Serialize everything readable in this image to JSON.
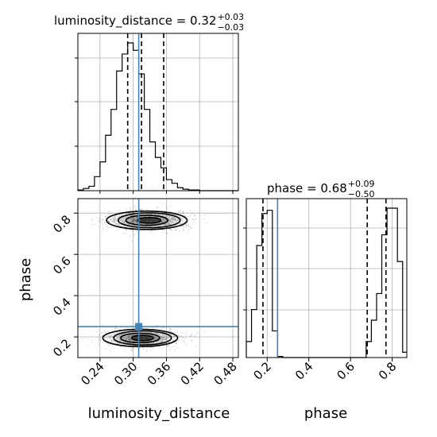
{
  "chart_data": [
    {
      "panel": "luminosity_distance marginal",
      "type": "histogram",
      "title": {
        "main": "luminosity_distance = 0.32",
        "plus": "+0.03",
        "minus": "−0.03"
      },
      "xlim": [
        0.2,
        0.49
      ],
      "bins": {
        "edges": [
          0.2,
          0.21,
          0.22,
          0.23,
          0.24,
          0.25,
          0.26,
          0.27,
          0.28,
          0.29,
          0.3,
          0.31,
          0.32,
          0.33,
          0.34,
          0.35,
          0.36,
          0.37,
          0.38,
          0.39,
          0.4,
          0.41,
          0.42,
          0.43,
          0.44,
          0.45,
          0.46,
          0.47,
          0.48,
          0.49
        ],
        "counts": [
          1,
          3,
          6,
          19,
          39,
          75,
          110,
          162,
          185,
          200,
          190,
          158,
          110,
          66,
          45,
          31,
          15,
          10,
          4,
          2,
          1,
          1,
          0,
          0,
          0,
          0,
          0,
          0,
          0
        ]
      },
      "quantiles": [
        0.29,
        0.315,
        0.355
      ],
      "truth": 0.31,
      "grid": true
    },
    {
      "panel": "phase marginal",
      "type": "histogram",
      "title": {
        "main": "phase = 0.68",
        "plus": "+0.09",
        "minus": "−0.50"
      },
      "xlim": [
        0.1,
        0.87
      ],
      "bins": {
        "edges": [
          0.1,
          0.125,
          0.15,
          0.175,
          0.2,
          0.225,
          0.25,
          0.275,
          0.3,
          0.325,
          0.35,
          0.375,
          0.4,
          0.425,
          0.45,
          0.475,
          0.5,
          0.525,
          0.55,
          0.575,
          0.6,
          0.625,
          0.65,
          0.675,
          0.7,
          0.725,
          0.75,
          0.775,
          0.8,
          0.825,
          0.85,
          0.875
        ],
        "counts": [
          15,
          45,
          105,
          135,
          138,
          25,
          1,
          0,
          0,
          0,
          0,
          0,
          0,
          0,
          0,
          0,
          0,
          0,
          0,
          0,
          0,
          0,
          0,
          15,
          35,
          60,
          115,
          140,
          140,
          90,
          5
        ]
      },
      "quantiles": [
        0.18,
        0.68,
        0.77
      ],
      "truth": 0.25,
      "grid": true
    },
    {
      "panel": "2D density",
      "type": "heatmap",
      "xlabel": "luminosity_distance",
      "ylabel": "phase",
      "xlim": [
        0.2,
        0.49
      ],
      "ylim": [
        0.1,
        0.87
      ],
      "xticks": [
        "0.24",
        "0.30",
        "0.36",
        "0.42",
        "0.48"
      ],
      "xtick_values": [
        0.24,
        0.3,
        0.36,
        0.42,
        0.48
      ],
      "yticks": [
        "0.2",
        "0.4",
        "0.6",
        "0.8"
      ],
      "ytick_values": [
        0.2,
        0.4,
        0.6,
        0.8
      ],
      "modes": [
        {
          "x": 0.326,
          "y": 0.765,
          "sx": 0.028,
          "sy": 0.018,
          "weight": 0.55
        },
        {
          "x": 0.314,
          "y": 0.195,
          "sx": 0.026,
          "sy": 0.017,
          "weight": 0.45
        }
      ],
      "truth": {
        "x": 0.31,
        "y": 0.25
      },
      "grid": true
    }
  ],
  "phase_xticks": [
    "0.2",
    "0.4",
    "0.6",
    "0.8"
  ],
  "phase_xtick_values": [
    0.2,
    0.4,
    0.6,
    0.8
  ],
  "xlabel_bottom_right": "phase",
  "colors": {
    "truth": "#4682b4",
    "hist": "#000000",
    "grid": "#b0b0b0"
  }
}
